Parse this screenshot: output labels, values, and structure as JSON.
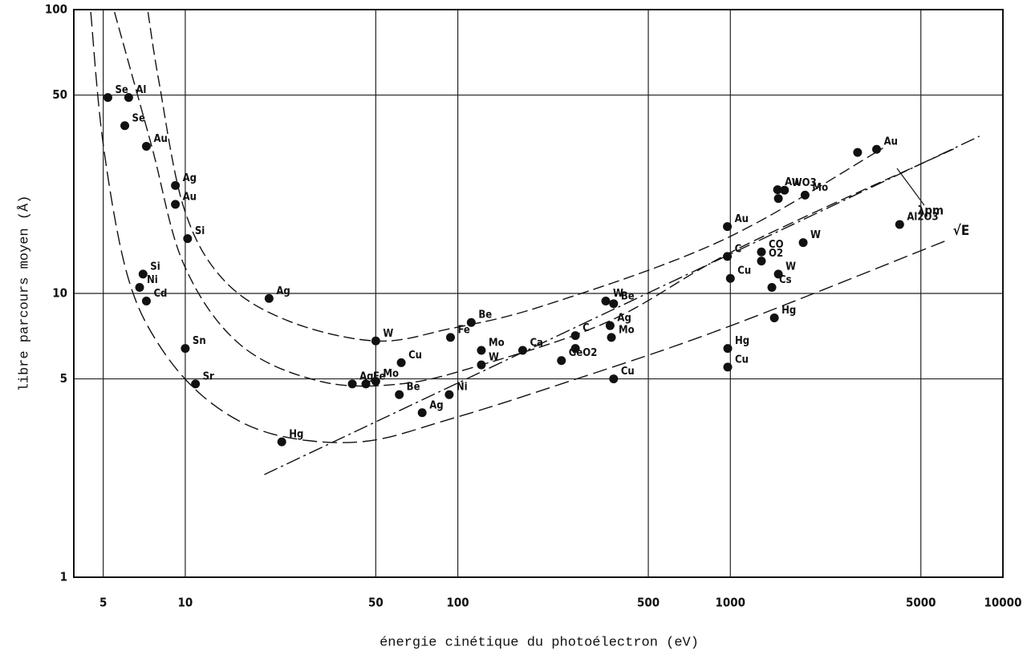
{
  "chart_data": {
    "type": "scatter",
    "xlabel": "énergie cinétique du photoélectron (eV)",
    "ylabel": "libre parcours moyen (Å)",
    "xscale": "log",
    "yscale": "log",
    "grid": true,
    "xlim": [
      3.9,
      10000
    ],
    "ylim": [
      1,
      100
    ],
    "xticks": [
      5,
      10,
      50,
      100,
      500,
      1000,
      5000,
      10000
    ],
    "yticks": [
      1,
      5,
      10,
      50,
      100
    ],
    "color": "#111111",
    "annotation": [
      "λpm",
      "√E"
    ],
    "points": [
      {
        "label": "Se",
        "x": 5.2,
        "y": 49
      },
      {
        "label": "Al",
        "x": 6.2,
        "y": 49
      },
      {
        "label": "Se",
        "x": 6.0,
        "y": 39
      },
      {
        "label": "Au",
        "x": 7.2,
        "y": 33
      },
      {
        "label": "Ag",
        "x": 9.2,
        "y": 24
      },
      {
        "label": "Au",
        "x": 9.2,
        "y": 20.6
      },
      {
        "label": "Si",
        "x": 10.2,
        "y": 15.6
      },
      {
        "label": "Si",
        "x": 7.0,
        "y": 11.7
      },
      {
        "label": "Ni",
        "x": 6.8,
        "y": 10.5
      },
      {
        "label": "Cd",
        "x": 7.2,
        "y": 9.4
      },
      {
        "label": "Sn",
        "x": 10.0,
        "y": 6.4
      },
      {
        "label": "Sr",
        "x": 10.9,
        "y": 4.8
      },
      {
        "label": "Hg",
        "x": 22.6,
        "y": 3.0
      },
      {
        "label": "Ag",
        "x": 20.3,
        "y": 9.6
      },
      {
        "label": "W",
        "x": 50,
        "y": 6.8
      },
      {
        "label": "Ag",
        "x": 41,
        "y": 4.8
      },
      {
        "label": "Mo",
        "x": 50,
        "y": 4.9
      },
      {
        "label": "Fe",
        "x": 46,
        "y": 4.8
      },
      {
        "label": "Be",
        "x": 61,
        "y": 4.4
      },
      {
        "label": "Cu",
        "x": 62,
        "y": 5.7
      },
      {
        "label": "Ag",
        "x": 74,
        "y": 3.8
      },
      {
        "label": "Ni",
        "x": 93,
        "y": 4.4
      },
      {
        "label": "Fe",
        "x": 94,
        "y": 7.0
      },
      {
        "label": "Be",
        "x": 112,
        "y": 7.9
      },
      {
        "label": "Mo",
        "x": 122,
        "y": 6.3
      },
      {
        "label": "W",
        "x": 122,
        "y": 5.6
      },
      {
        "label": "Ca",
        "x": 173,
        "y": 6.3
      },
      {
        "label": "GeO2",
        "x": 240,
        "y": 5.8
      },
      {
        "label": "C",
        "x": 270,
        "y": 7.1
      },
      {
        "label": null,
        "x": 270,
        "y": 6.4
      },
      {
        "label": "W",
        "x": 349,
        "y": 9.4
      },
      {
        "label": "Be",
        "x": 373,
        "y": 9.2
      },
      {
        "label": "Ag",
        "x": 362,
        "y": 7.7
      },
      {
        "label": "Mo",
        "x": 366,
        "y": 7.0
      },
      {
        "label": "Cu",
        "x": 373,
        "y": 5.0
      },
      {
        "label": "Hg",
        "x": 978,
        "y": 6.4
      },
      {
        "label": "Cu",
        "x": 978,
        "y": 5.5
      },
      {
        "label": "Au",
        "x": 975,
        "y": 17.2
      },
      {
        "label": "C",
        "x": 975,
        "y": 13.5
      },
      {
        "label": "Cu",
        "x": 1000,
        "y": 11.3
      },
      {
        "label": "O2",
        "x": 1300,
        "y": 13
      },
      {
        "label": "CO",
        "x": 1300,
        "y": 14
      },
      {
        "label": "Cs",
        "x": 1420,
        "y": 10.5
      },
      {
        "label": "W",
        "x": 1500,
        "y": 11.7
      },
      {
        "label": "Hg",
        "x": 1450,
        "y": 8.2
      },
      {
        "label": "Au",
        "x": 1490,
        "y": 23.2
      },
      {
        "label": "WO3",
        "x": 1580,
        "y": 23.1
      },
      {
        "label": null,
        "x": 1500,
        "y": 21.6
      },
      {
        "label": "Mo",
        "x": 1880,
        "y": 22.2
      },
      {
        "label": "W",
        "x": 1850,
        "y": 15.1
      },
      {
        "label": null,
        "x": 2930,
        "y": 31.4
      },
      {
        "label": "Au",
        "x": 3440,
        "y": 32.2
      },
      {
        "label": "Al2O3",
        "x": 4180,
        "y": 17.5
      }
    ],
    "curves": [
      {
        "x": [
          7.3,
          8.0,
          9.9,
          13.9,
          23.9,
          50,
          93,
          210,
          935,
          3630
        ],
        "y": [
          98,
          56,
          19.9,
          11.1,
          8.0,
          6.8,
          7.5,
          9.1,
          15.4,
          32.5
        ]
      },
      {
        "x": [
          5.5,
          7.5,
          9.9,
          15.9,
          31.3,
          61.8,
          122,
          361,
          1070,
          6700
        ],
        "y": [
          98,
          33.5,
          12.6,
          6.6,
          4.9,
          4.8,
          5.6,
          8.0,
          14.4,
          32.5
        ]
      },
      {
        "x": [
          4.5,
          5.0,
          6.1,
          8.0,
          12.1,
          20.8,
          44,
          93,
          240,
          935,
          6250
        ],
        "y": [
          98,
          33.5,
          11.8,
          6.6,
          4.2,
          3.2,
          3.0,
          3.6,
          4.8,
          7.5,
          15.4
        ]
      },
      {
        "x": [
          19.5,
          8200
        ],
        "y": [
          2.3,
          35.8
        ]
      }
    ]
  }
}
